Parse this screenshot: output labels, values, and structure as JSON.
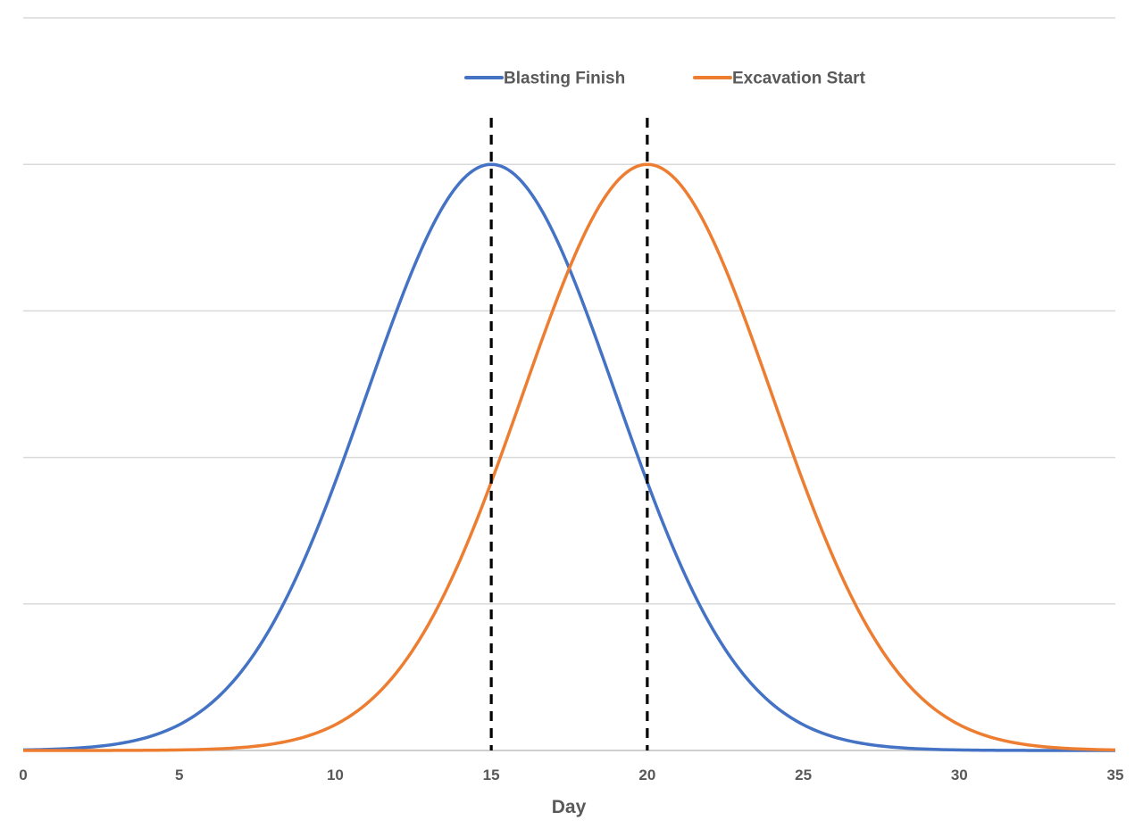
{
  "chart_data": {
    "type": "line",
    "title": "",
    "xlabel": "Day",
    "ylabel": "",
    "xlim": [
      0,
      35
    ],
    "ylim": [
      0,
      1.25
    ],
    "x_ticks": [
      "0",
      "5",
      "10",
      "15",
      "20",
      "25",
      "30",
      "35"
    ],
    "grid": "horizontal",
    "legend_position": "top-center",
    "series": [
      {
        "name": "Blasting Finish",
        "color": "#4472C4",
        "peak_x": 15,
        "spread": 4,
        "x": [
          0,
          1,
          2,
          3,
          4,
          5,
          6,
          7,
          8,
          9,
          10,
          11,
          12,
          13,
          14,
          15,
          16,
          17,
          18,
          19,
          20,
          21,
          22,
          23,
          24,
          25,
          26,
          27,
          28,
          29,
          30,
          31,
          32,
          33,
          34,
          35
        ],
        "values": [
          0.0009,
          0.0022,
          0.005,
          0.0108,
          0.0225,
          0.0439,
          0.0796,
          0.135,
          0.2165,
          0.3247,
          0.4578,
          0.6065,
          0.7548,
          0.8825,
          0.9692,
          1.0,
          0.9692,
          0.8825,
          0.7548,
          0.6065,
          0.4578,
          0.3247,
          0.2165,
          0.135,
          0.0796,
          0.0439,
          0.0225,
          0.0108,
          0.005,
          0.0022,
          0.0009,
          0.0003,
          0.0001,
          0.0,
          0.0,
          0.0
        ]
      },
      {
        "name": "Excavation Start",
        "color": "#ED7D31",
        "peak_x": 20,
        "spread": 4,
        "x": [
          0,
          1,
          2,
          3,
          4,
          5,
          6,
          7,
          8,
          9,
          10,
          11,
          12,
          13,
          14,
          15,
          16,
          17,
          18,
          19,
          20,
          21,
          22,
          23,
          24,
          25,
          26,
          27,
          28,
          29,
          30,
          31,
          32,
          33,
          34,
          35
        ],
        "values": [
          0.0,
          0.0,
          0.0,
          0.0001,
          0.0003,
          0.0009,
          0.0022,
          0.005,
          0.0108,
          0.0225,
          0.0439,
          0.0796,
          0.135,
          0.2165,
          0.3247,
          0.4578,
          0.6065,
          0.7548,
          0.8825,
          0.9692,
          1.0,
          0.9692,
          0.8825,
          0.7548,
          0.6065,
          0.4578,
          0.3247,
          0.2165,
          0.135,
          0.0796,
          0.0439,
          0.0225,
          0.0108,
          0.005,
          0.0022,
          0.0009
        ]
      }
    ],
    "reference_lines": [
      {
        "x": 15,
        "style": "dashed",
        "color": "#000000"
      },
      {
        "x": 20,
        "style": "dashed",
        "color": "#000000"
      }
    ]
  }
}
